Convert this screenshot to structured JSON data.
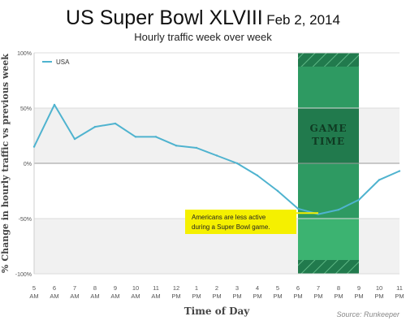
{
  "header": {
    "title": "US Super Bowl XLVIII",
    "date": "Feb 2, 2014",
    "subtitle": "Hourly traffic week over week"
  },
  "source": "Source: Runkeeper",
  "colors": {
    "line": "#4fb3cf",
    "band_dark": "#217a4d",
    "band_mid": "#2e9a62",
    "band_light": "#3cb371",
    "annotation_bg": "#f5f000",
    "stripe_bg": "#f1f1f1"
  },
  "chart_data": {
    "type": "line",
    "xlabel": "Time of Day",
    "ylabel": "% Change in hourly traffic vs previous week",
    "ylim": [
      -100,
      100
    ],
    "yticks": [
      100,
      50,
      0,
      -50,
      -100
    ],
    "ytick_labels": [
      "100%",
      "50%",
      "0%",
      "-50%",
      "-100%"
    ],
    "x_hours": [
      5,
      6,
      7,
      8,
      9,
      10,
      11,
      12,
      13,
      14,
      15,
      16,
      17,
      18,
      19,
      20,
      21,
      22,
      23
    ],
    "xtick_labels": [
      [
        "5",
        "AM"
      ],
      [
        "6",
        "AM"
      ],
      [
        "7",
        "AM"
      ],
      [
        "8",
        "AM"
      ],
      [
        "9",
        "AM"
      ],
      [
        "10",
        "AM"
      ],
      [
        "11",
        "AM"
      ],
      [
        "12",
        "PM"
      ],
      [
        "1",
        "PM"
      ],
      [
        "2",
        "PM"
      ],
      [
        "3",
        "PM"
      ],
      [
        "4",
        "PM"
      ],
      [
        "5",
        "PM"
      ],
      [
        "6",
        "PM"
      ],
      [
        "7",
        "PM"
      ],
      [
        "8",
        "PM"
      ],
      [
        "9",
        "PM"
      ],
      [
        "10",
        "PM"
      ],
      [
        "11",
        "PM"
      ]
    ],
    "series": [
      {
        "name": "USA",
        "values": [
          15,
          53,
          22,
          33,
          36,
          24,
          24,
          16,
          14,
          7,
          0,
          -11,
          -25,
          -41,
          -46,
          -42,
          -33,
          -15,
          -7
        ]
      }
    ],
    "game_time": {
      "label_line1": "GAME",
      "label_line2": "TIME",
      "start": 18.0,
      "end": 21.0
    },
    "annotation": {
      "line1": "Americans are less active",
      "line2": "during a Super Bowl game.",
      "x": 19.0,
      "y": -45
    },
    "legend": "top-left",
    "grid": true
  }
}
